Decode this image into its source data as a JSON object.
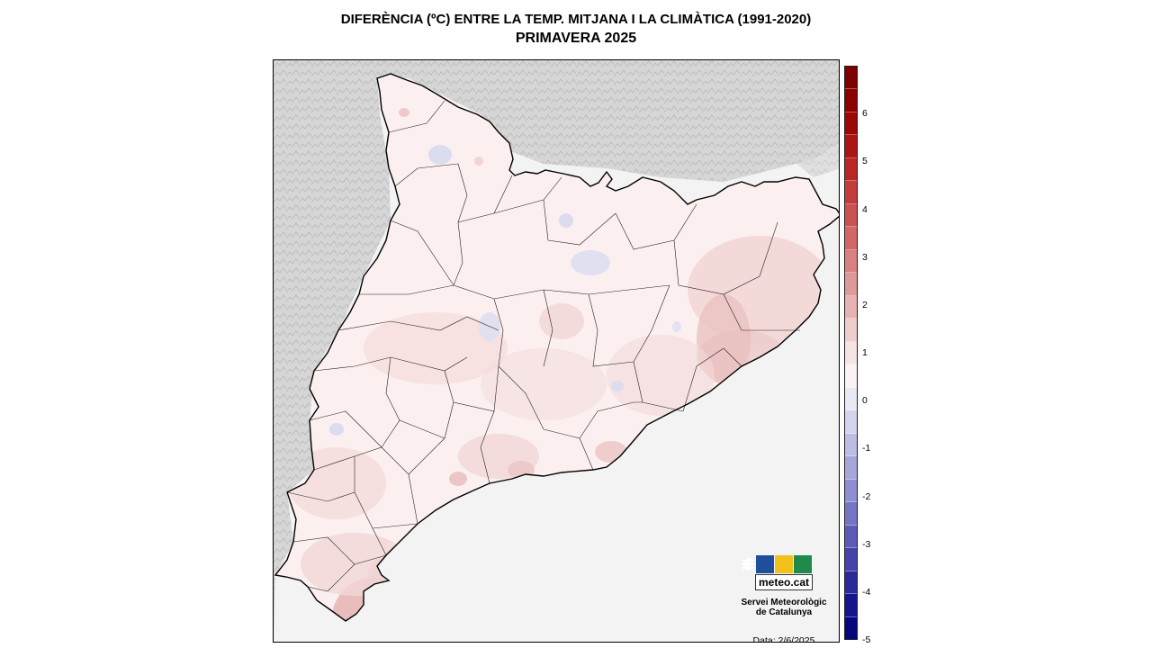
{
  "title": "DIFERÈNCIA (ºC) ENTRE LA TEMP. MITJANA I LA CLIMÀTICA (1991-2020)",
  "subtitle": "PRIMAVERA 2025",
  "logo": {
    "wordmark": "meteo.cat",
    "org_line1": "Servei Meteorològic",
    "org_line2": "de Catalunya",
    "date": "Data: 2/6/2025",
    "icons": [
      "bars-icon",
      "sun-icon",
      "map-outline-icon"
    ]
  },
  "legend": {
    "min": -5,
    "max": 7,
    "ticks": [
      "6",
      "5",
      "4",
      "3",
      "2",
      "1",
      "0",
      "-1",
      "-2",
      "-3",
      "-4",
      "-5"
    ],
    "colors": [
      "#7e0000",
      "#8c0000",
      "#9c0707",
      "#ad1414",
      "#b82626",
      "#c23c3c",
      "#ca5252",
      "#d06868",
      "#d78181",
      "#de9999",
      "#e6b3b3",
      "#efcdcd",
      "#f6e4e4",
      "#fbf3f3",
      "#e9e9f6",
      "#d4d4ee",
      "#bdbde4",
      "#a6a6db",
      "#8e8ed1",
      "#7575c5",
      "#5c5cb8",
      "#4343aa",
      "#2a2a9c",
      "#15158f",
      "#06067f"
    ]
  },
  "map": {
    "sea_color": "#f3f3f3",
    "land_outside_color": "#d8d8d8",
    "base_anomaly_color": "#fbefef",
    "warm_color": "#f2d3d3",
    "warmer_color": "#e9b4b4",
    "cool_color": "#dcdcef"
  }
}
